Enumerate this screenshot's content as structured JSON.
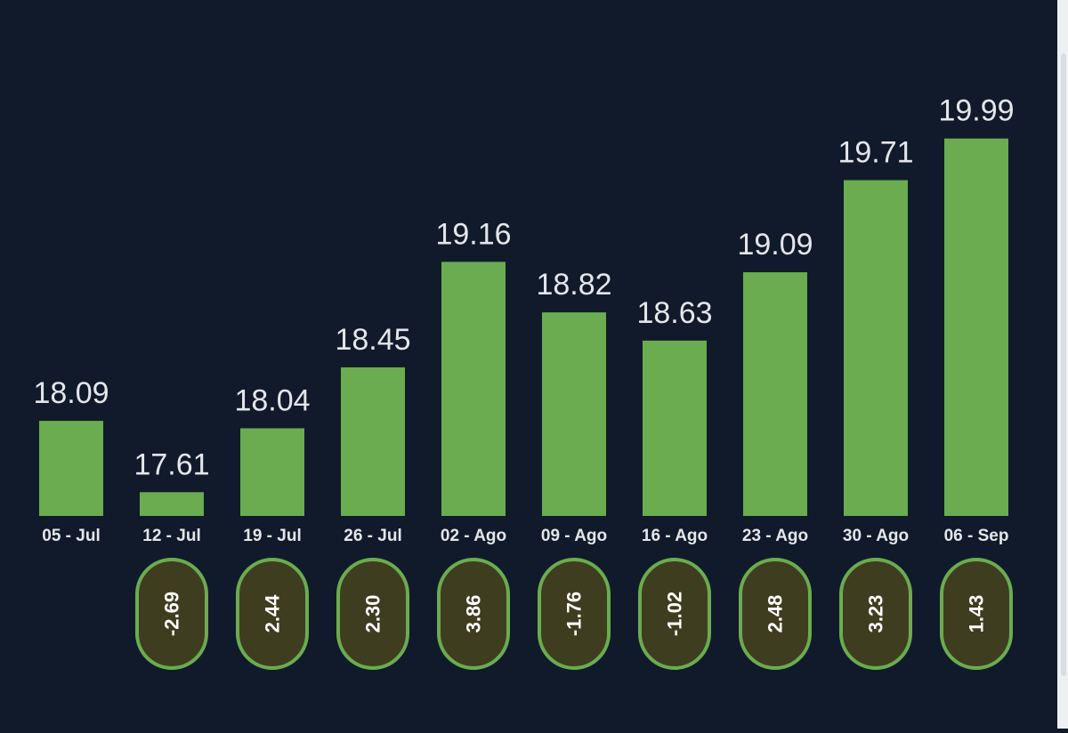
{
  "chart_data": {
    "type": "bar",
    "title": "",
    "xlabel": "",
    "ylabel": "",
    "ylim": [
      17.45,
      20.12
    ],
    "grid": false,
    "legend": "none",
    "categories": [
      "05 - Jul",
      "12 - Jul",
      "19 - Jul",
      "26 - Jul",
      "02 - Ago",
      "09 - Ago",
      "16 - Ago",
      "23 - Ago",
      "30 - Ago",
      "06 - Sep"
    ],
    "values": [
      18.09,
      17.61,
      18.04,
      18.45,
      19.16,
      18.82,
      18.63,
      19.09,
      19.71,
      19.99
    ],
    "value_labels": [
      "18.09",
      "17.61",
      "18.04",
      "18.45",
      "19.16",
      "18.82",
      "18.63",
      "19.09",
      "19.71",
      "19.99"
    ],
    "changes": [
      null,
      "-2.69",
      "2.44",
      "2.30",
      "3.86",
      "-1.76",
      "-1.02",
      "2.48",
      "3.23",
      "1.43"
    ]
  },
  "colors": {
    "background": "#111a2b",
    "bar": "#6aac4f",
    "value_label": "#e4e6ea",
    "tick_label": "#e4e6ea",
    "pill_fill": "#3f3d1f",
    "pill_border": "#6aac4f",
    "pill_text": "#ffffff"
  }
}
